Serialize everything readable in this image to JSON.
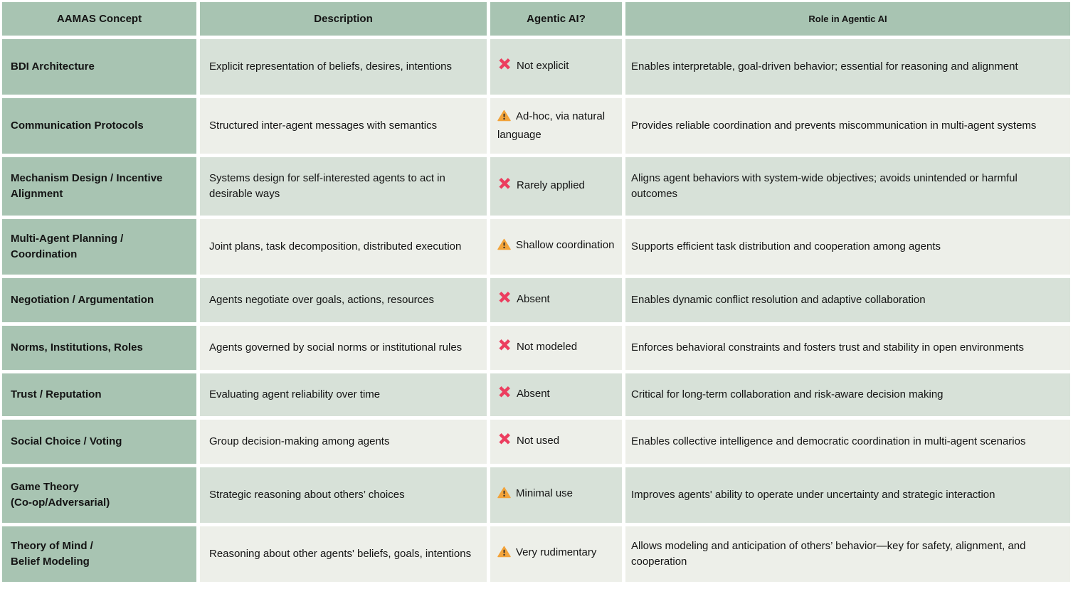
{
  "table": {
    "columns": [
      {
        "label": "AAMAS Concept"
      },
      {
        "label": "Description"
      },
      {
        "label": "Agentic AI?"
      },
      {
        "label": "Role in Agentic AI"
      }
    ],
    "rows": [
      {
        "concept": "BDI Architecture",
        "description": "Explicit representation of beliefs, desires, intentions",
        "status": {
          "icon": "cross-icon",
          "label": "Not explicit"
        },
        "role": "Enables interpretable, goal-driven behavior; essential for reasoning and alignment"
      },
      {
        "concept": "Communication Protocols",
        "description": "Structured inter-agent messages with semantics",
        "status": {
          "icon": "warning-icon",
          "label": "Ad-hoc, via natural language"
        },
        "role": "Provides reliable coordination and prevents miscommunication in multi-agent systems"
      },
      {
        "concept": "Mechanism Design / Incentive Alignment",
        "description": "Systems design for self-interested agents to act in desirable ways",
        "status": {
          "icon": "cross-icon",
          "label": "Rarely applied"
        },
        "role": "Aligns agent behaviors with system-wide objectives; avoids unintended or harmful outcomes"
      },
      {
        "concept": "Multi-Agent Planning / Coordination",
        "description": "Joint plans, task decomposition, distributed execution",
        "status": {
          "icon": "warning-icon",
          "label": "Shallow coordination"
        },
        "role": "Supports efficient task distribution and cooperation among agents"
      },
      {
        "concept": "Negotiation / Argumentation",
        "description": "Agents negotiate over goals, actions, resources",
        "status": {
          "icon": "cross-icon",
          "label": "Absent"
        },
        "role": "Enables dynamic conflict resolution and adaptive collaboration"
      },
      {
        "concept": "Norms, Institutions, Roles",
        "description": "Agents governed by social norms or institutional rules",
        "status": {
          "icon": "cross-icon",
          "label": "Not modeled"
        },
        "role": "Enforces behavioral constraints and fosters trust and stability in open environments"
      },
      {
        "concept": "Trust / Reputation",
        "description": "Evaluating agent reliability over time",
        "status": {
          "icon": "cross-icon",
          "label": "Absent"
        },
        "role": "Critical for long-term collaboration and risk-aware decision making"
      },
      {
        "concept": "Social Choice / Voting",
        "description": "Group decision-making among agents",
        "status": {
          "icon": "cross-icon",
          "label": "Not used"
        },
        "role": "Enables collective intelligence and democratic coordination in multi-agent scenarios"
      },
      {
        "concept": "Game Theory\n(Co-op/Adversarial)",
        "description": "Strategic reasoning about others’ choices",
        "status": {
          "icon": "warning-icon",
          "label": "Minimal use"
        },
        "role": "Improves agents' ability to operate under uncertainty and strategic interaction"
      },
      {
        "concept": "Theory of Mind /\nBelief Modeling",
        "description": "Reasoning about other agents' beliefs, goals, intentions",
        "status": {
          "icon": "warning-icon",
          "label": "Very rudimentary"
        },
        "role": "Allows modeling and anticipation of others’ behavior—key for safety, alignment, and cooperation"
      }
    ]
  },
  "colors": {
    "header_bg": "#a8c4b2",
    "concept_column_bg": "#a8c4b2",
    "row_shade_sage": "#d7e1d8",
    "row_shade_light": "#edefe9",
    "cross_icon": "#ec3e5f",
    "warning_icon": "#f2a33a",
    "text": "#141414"
  }
}
